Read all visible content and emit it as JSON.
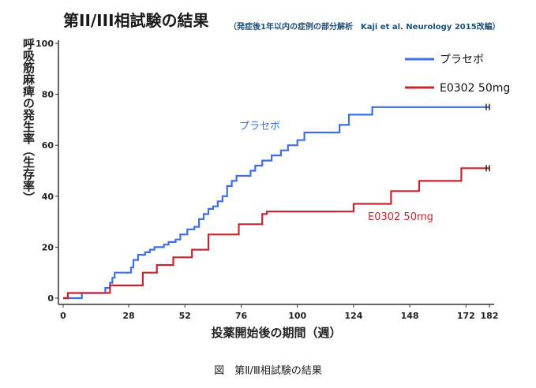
{
  "title": "第II/III相試験の結果",
  "subtitle": "（発症後1年以内の症例の部分解析　Kaji et al. Neurology 2015改編）",
  "caption": "図　第Ⅱ/Ⅲ相試験の結果",
  "chart_data": {
    "type": "line",
    "ylabel": "呼吸筋麻痺の発生率（生存率）",
    "xlabel": "投薬開始後の期間（週）",
    "xlim": [
      0,
      182
    ],
    "ylim": [
      0,
      100
    ],
    "xticks": [
      "0",
      "28",
      "52",
      "76",
      "100",
      "124",
      "148",
      "172",
      "182"
    ],
    "xtick_values": [
      0,
      28,
      52,
      76,
      100,
      124,
      148,
      172,
      182
    ],
    "yticks": [
      "0",
      "20",
      "40",
      "60",
      "80",
      "100"
    ],
    "ytick_values": [
      0,
      20,
      40,
      60,
      80,
      100
    ],
    "grid": false,
    "legend_position": "top-right",
    "series": [
      {
        "name": "プラセボ",
        "color": "#3d6fe6",
        "step": true,
        "x": [
          0,
          8,
          18,
          20,
          21,
          22,
          29,
          30,
          32,
          35,
          37,
          39,
          43,
          45,
          48,
          50,
          53,
          56,
          58,
          60,
          62,
          64,
          66,
          68,
          70,
          72,
          74,
          80,
          82,
          85,
          89,
          93,
          96,
          100,
          103,
          118,
          122,
          132,
          182
        ],
        "y": [
          0,
          2,
          4,
          6,
          8,
          10,
          12,
          15,
          17,
          18,
          19,
          20,
          21,
          22,
          23,
          25,
          27,
          28,
          31,
          33,
          35,
          36,
          38,
          40,
          44,
          46,
          48,
          50,
          52,
          54,
          56,
          58,
          60,
          62,
          65,
          68,
          72,
          75,
          75
        ]
      },
      {
        "name": "E0302 50mg",
        "color": "#c8262f",
        "step": true,
        "x": [
          0,
          2,
          20,
          34,
          40,
          47,
          55,
          62,
          75,
          85,
          87,
          124,
          140,
          152,
          170,
          182
        ],
        "y": [
          0,
          2,
          5,
          10,
          13,
          16,
          19,
          25,
          29,
          33,
          34,
          37,
          42,
          46,
          51,
          51
        ]
      }
    ],
    "annotations": [
      {
        "text": "プラセボ",
        "series": 0
      },
      {
        "text": "E0302 50mg",
        "series": 1
      }
    ]
  }
}
